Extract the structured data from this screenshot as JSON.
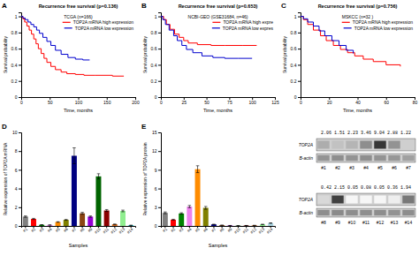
{
  "chart_data": [
    {
      "type": "line",
      "line_style": "step",
      "title": "Recurrence free survival (p=0.136)",
      "subtitle": "TCGA (n=166)",
      "x_label": "Time, months",
      "y_label": "Survival probability",
      "annotations": [
        "A"
      ],
      "xlim": [
        0,
        200
      ],
      "ylim": [
        0.0,
        1.05
      ],
      "xticks": [
        0,
        50,
        100,
        150,
        200
      ],
      "yticks": [
        0,
        0.2,
        0.4,
        0.6,
        0.8,
        1
      ],
      "legend": "upper right",
      "series": [
        {
          "name": "TOP2A mRNA high expression",
          "color": "#FF0000",
          "x": [
            0,
            3,
            6,
            10,
            14,
            18,
            22,
            26,
            30,
            35,
            40,
            45,
            52,
            60,
            70,
            80,
            95,
            110,
            130,
            160,
            180
          ],
          "values": [
            1.0,
            0.97,
            0.93,
            0.88,
            0.83,
            0.78,
            0.72,
            0.66,
            0.6,
            0.54,
            0.48,
            0.43,
            0.38,
            0.34,
            0.31,
            0.29,
            0.28,
            0.27,
            0.27,
            0.26,
            0.26
          ]
        },
        {
          "name": "TOP2A mRNA low expression",
          "color": "#0000CD",
          "x": [
            0,
            3,
            7,
            12,
            17,
            22,
            27,
            32,
            38,
            45,
            52,
            60,
            70,
            82,
            95,
            108,
            120
          ],
          "values": [
            1.0,
            0.98,
            0.96,
            0.93,
            0.9,
            0.87,
            0.83,
            0.79,
            0.74,
            0.69,
            0.64,
            0.58,
            0.53,
            0.49,
            0.47,
            0.46,
            0.46
          ]
        }
      ]
    },
    {
      "type": "line",
      "line_style": "step",
      "title": "Recurrence free survival (p=0.653)",
      "subtitle": "NCBI-GEO (GSE31684, n=46)",
      "x_label": "Time, months",
      "y_label": "Survival probability",
      "annotations": [
        "B"
      ],
      "xlim": [
        0,
        125
      ],
      "ylim": [
        0.0,
        1.05
      ],
      "xticks": [
        0,
        25,
        50,
        75,
        100,
        125
      ],
      "yticks": [
        0,
        0.2,
        0.4,
        0.6,
        0.8,
        1
      ],
      "legend": "upper right",
      "series": [
        {
          "name": "TOP2A mRNA high expre",
          "color": "#FF0000",
          "x": [
            0,
            3,
            6,
            10,
            15,
            20,
            25,
            30,
            40,
            55,
            70,
            90,
            105
          ],
          "values": [
            1.0,
            0.96,
            0.9,
            0.84,
            0.78,
            0.74,
            0.7,
            0.67,
            0.65,
            0.64,
            0.64,
            0.64,
            0.64
          ]
        },
        {
          "name": "TOP2A mRNA low expres",
          "color": "#0000CD",
          "x": [
            0,
            2,
            5,
            9,
            14,
            18,
            23,
            28,
            35,
            45,
            57,
            70,
            85,
            100
          ],
          "values": [
            1.0,
            0.96,
            0.9,
            0.83,
            0.76,
            0.7,
            0.64,
            0.59,
            0.55,
            0.51,
            0.49,
            0.48,
            0.48,
            0.48
          ]
        }
      ]
    },
    {
      "type": "line",
      "line_style": "step",
      "title": "Recurrence free survival (p=0.756)",
      "subtitle": "MSKCC (n=32 )",
      "x_label": "Time, months",
      "y_label": "Survival probability",
      "annotations": [
        "C"
      ],
      "xlim": [
        0,
        80
      ],
      "ylim": [
        0.0,
        1.05
      ],
      "xticks": [
        0,
        20,
        40,
        60,
        80
      ],
      "yticks": [
        0,
        0.2,
        0.4,
        0.6,
        0.8,
        1
      ],
      "legend": "upper right",
      "series": [
        {
          "name": "TOP2A mRNA high expression",
          "color": "#FF0000",
          "x": [
            0,
            2,
            5,
            9,
            14,
            18,
            23,
            28,
            33,
            38,
            44,
            51,
            60,
            70
          ],
          "values": [
            1.0,
            0.96,
            0.9,
            0.83,
            0.76,
            0.7,
            0.64,
            0.59,
            0.55,
            0.51,
            0.47,
            0.44,
            0.4,
            0.38
          ]
        },
        {
          "name": "TOP2A mRNA low expression",
          "color": "#0000CD",
          "x": [
            0,
            2,
            5,
            9,
            13,
            17,
            22,
            27,
            32,
            37
          ],
          "values": [
            1.0,
            0.97,
            0.93,
            0.88,
            0.82,
            0.76,
            0.7,
            0.64,
            0.58,
            0.54
          ]
        }
      ]
    },
    {
      "type": "bar",
      "x_label": "Samples",
      "y_label": "Relative expression of TOP2A mRNA",
      "annotations": [
        "D"
      ],
      "categories": [
        "#1",
        "#2",
        "#3",
        "#4",
        "#5",
        "#6",
        "#7",
        "#8",
        "#9",
        "#10",
        "#11",
        "#12",
        "#13",
        "#14"
      ],
      "values": [
        1.0,
        0.75,
        0.12,
        0.1,
        0.42,
        0.65,
        7.5,
        1.35,
        1.0,
        5.3,
        1.65,
        0.18,
        1.6,
        0.07
      ],
      "errors": [
        0.07,
        0.06,
        0.01,
        0.01,
        0.03,
        0.04,
        0.85,
        0.1,
        0.07,
        0.28,
        0.1,
        0.02,
        0.09,
        0.01
      ],
      "colors": [
        "#808080",
        "#FF0000",
        "#008000",
        "#EE82EE",
        "#FF8C00",
        "#808000",
        "#000080",
        "#8B4513",
        "#9400D3",
        "#006400",
        "#8B0000",
        "#D2691E",
        "#90EE90",
        "#00CED1"
      ],
      "ylim": [
        0,
        10
      ],
      "yticks": [
        0,
        2,
        4,
        6,
        8,
        10
      ]
    },
    {
      "type": "bar",
      "x_label": "Samples",
      "y_label": "Relative expression of TOP2A protein",
      "annotations": [
        "E"
      ],
      "categories": [
        "#1",
        "#2",
        "#3",
        "#4",
        "#5",
        "#6",
        "#7",
        "#8",
        "#9",
        "#10",
        "#11",
        "#12",
        "#13",
        "#14"
      ],
      "values": [
        2.1,
        1.0,
        2.0,
        3.1,
        9.1,
        2.9,
        0.25,
        0.12,
        0.07,
        0.04,
        0.07,
        0.09,
        0.25,
        0.45
      ],
      "errors": [
        0.14,
        0.07,
        0.11,
        0.18,
        0.55,
        0.22,
        0.02,
        0.01,
        0.01,
        0.01,
        0.01,
        0.01,
        0.02,
        0.04
      ],
      "colors": [
        "#808080",
        "#FF0000",
        "#008000",
        "#EE82EE",
        "#FF8C00",
        "#808000",
        "#000080",
        "#8B4513",
        "#9400D3",
        "#006400",
        "#8B0000",
        "#D2691E",
        "#90EE90",
        "#ADD8E6"
      ],
      "ylim": [
        0,
        15
      ],
      "yticks": [
        0,
        3,
        6,
        9,
        12,
        15
      ]
    },
    {
      "type": "blot",
      "groups": [
        {
          "annotation": "2.06 1.51 2.23 3.46 9.04 2.88 1.22",
          "lanes": [
            "#1",
            "#2",
            "#3",
            "#4",
            "#5",
            "#6",
            "#7"
          ],
          "rows": [
            {
              "name": "TOP2A",
              "values": [
                0.38,
                0.28,
                0.34,
                0.52,
                0.92,
                0.5,
                0.22
              ]
            },
            {
              "name": "B-actin",
              "values": [
                0.5,
                0.52,
                0.5,
                0.52,
                0.5,
                0.48,
                0.44
              ]
            }
          ]
        },
        {
          "annotation": "0.42 2.15 0.05 0.08 0.05 0.36 1.94",
          "lanes": [
            "#8",
            "#9",
            "#10",
            "#11",
            "#12",
            "#13",
            "#14"
          ],
          "rows": [
            {
              "name": "TOP2A",
              "values": [
                0.18,
                0.88,
                0.04,
                0.04,
                0.04,
                0.08,
                0.62
              ]
            },
            {
              "name": "B-actin",
              "values": [
                0.52,
                0.54,
                0.52,
                0.52,
                0.52,
                0.5,
                0.52
              ]
            }
          ]
        }
      ]
    }
  ]
}
